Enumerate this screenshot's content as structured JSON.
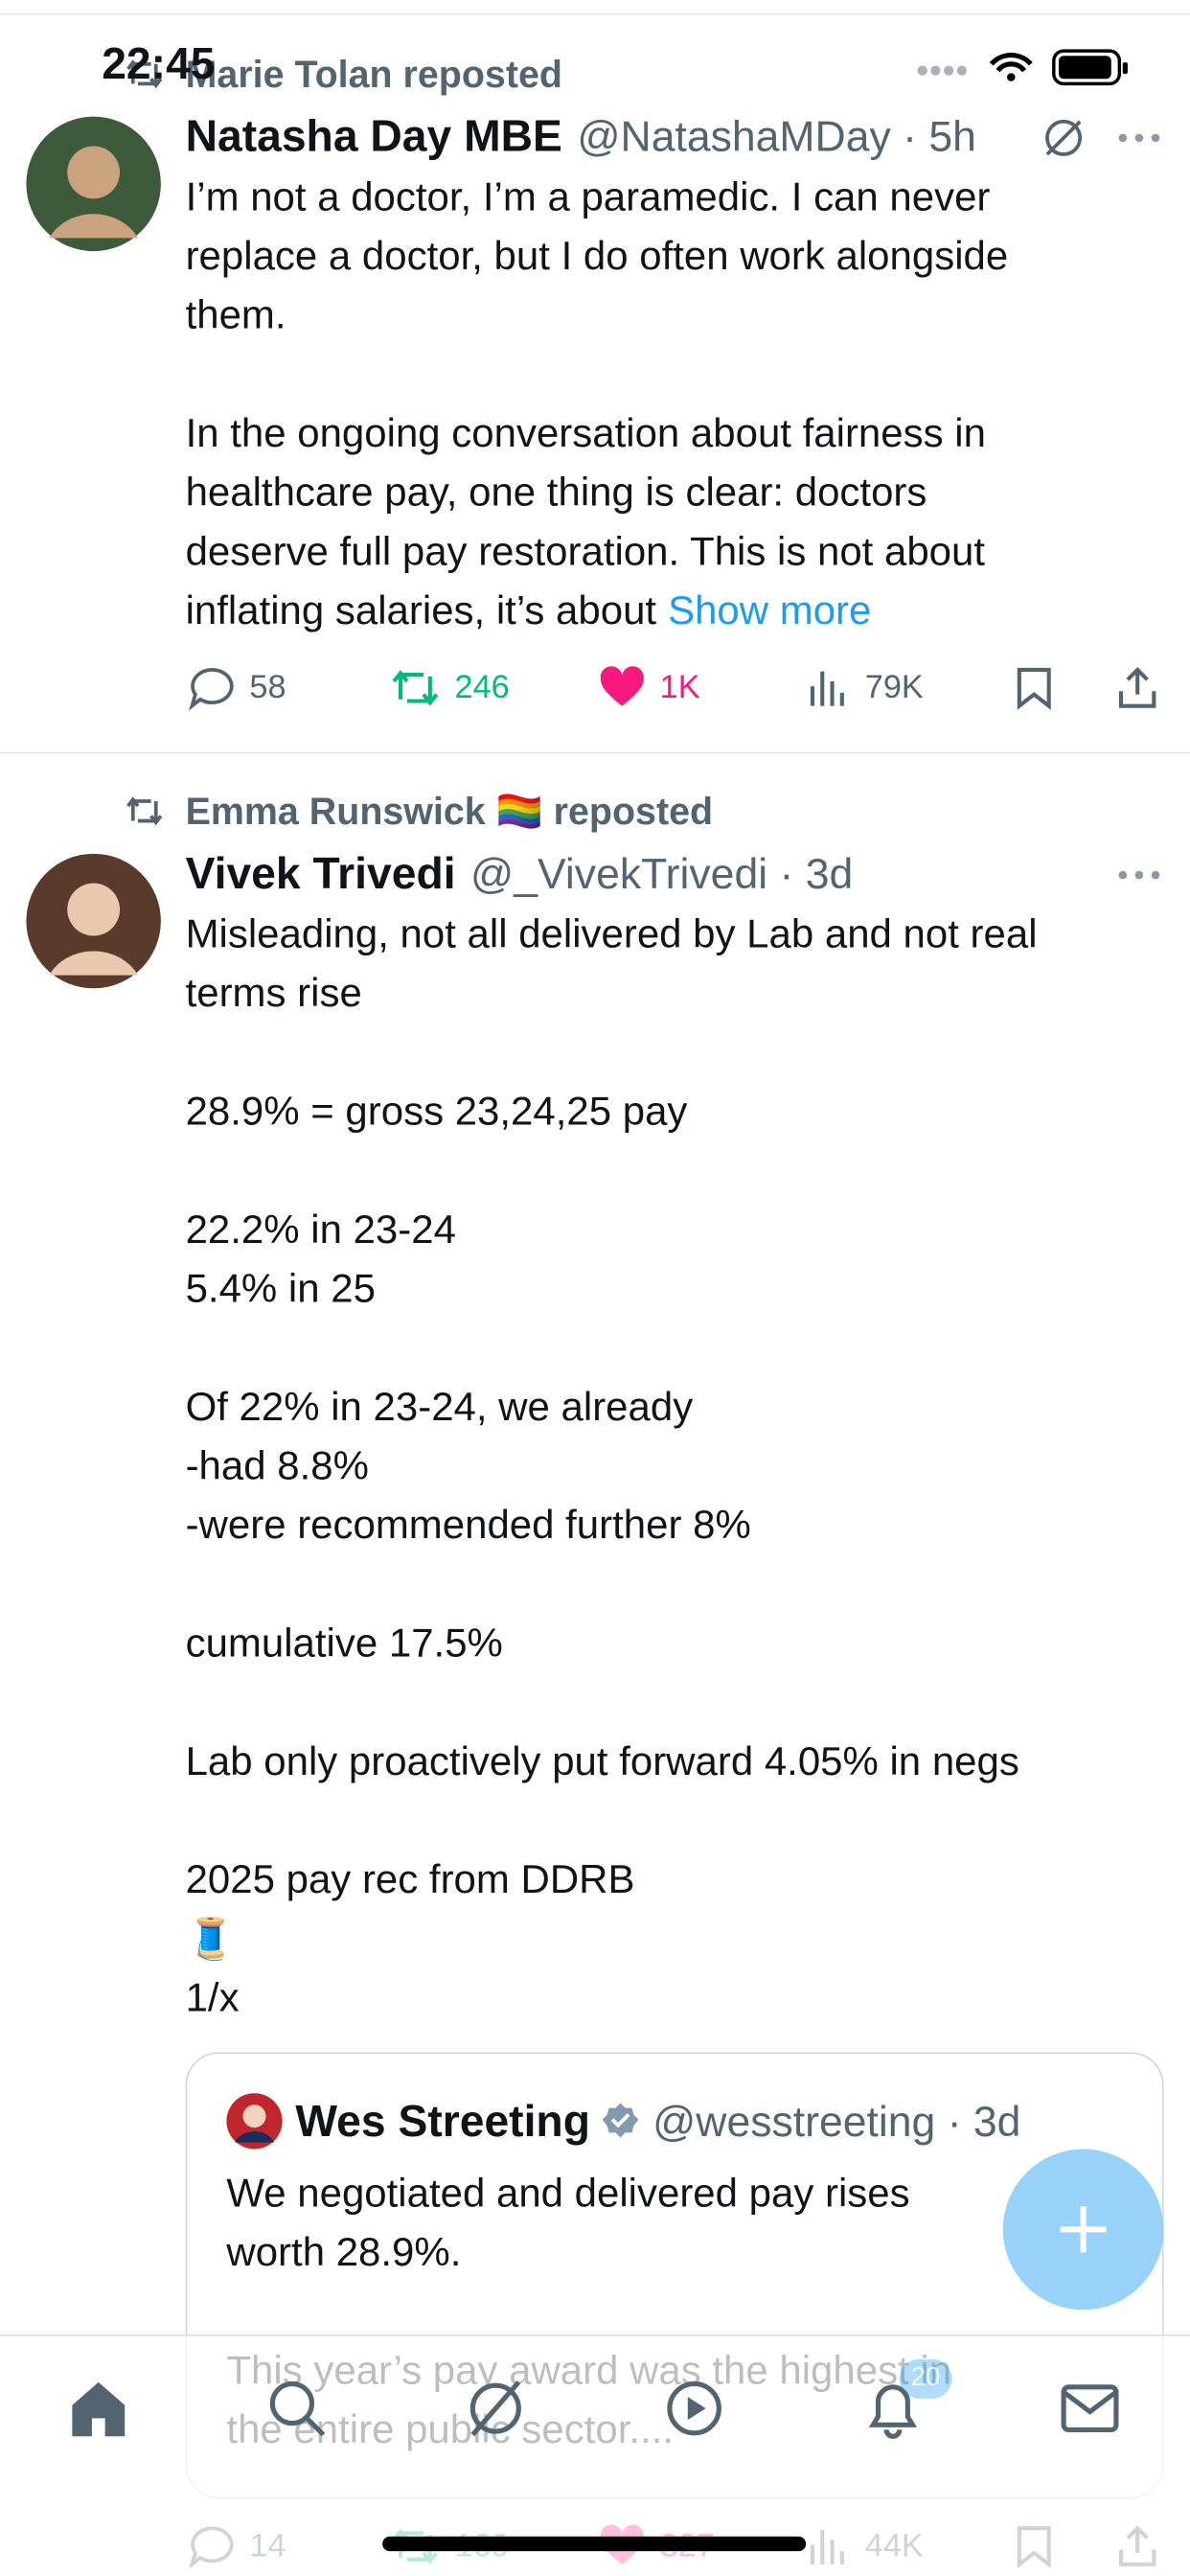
{
  "status": {
    "time": "22:45"
  },
  "posts": [
    {
      "reposted_by": "Marie Tolan reposted",
      "name": "Natasha Day MBE",
      "meta": "@NatashaMDay · 5h",
      "paragraphs": [
        [
          "I’m not a doctor, I’m a paramedic. I can never",
          "replace a doctor, but I do often work alongside",
          "them."
        ],
        [
          "In the ongoing conversation about fairness in",
          "healthcare pay, one thing is clear: doctors",
          "deserve full pay restoration. This is not about",
          "inflating salaries, it’s about"
        ]
      ],
      "show_more": "Show more",
      "stats": {
        "replies": "58",
        "reposts": "246",
        "likes": "1K",
        "views": "79K"
      }
    },
    {
      "reposted_by": "Emma Runswick 🏳️‍🌈 reposted",
      "name": "Vivek Trivedi",
      "meta": "@_VivekTrivedi · 3d",
      "paragraphs": [
        [
          "Misleading, not all delivered by Lab and not real",
          "terms rise"
        ],
        [
          "28.9% = gross 23,24,25 pay"
        ],
        [
          "22.2% in 23-24",
          "5.4% in 25"
        ],
        [
          "Of 22% in 23-24, we already",
          "-had 8.8%",
          "-were recommended further 8%"
        ],
        [
          "cumulative 17.5%"
        ],
        [
          "Lab only proactively put forward 4.05% in negs"
        ],
        [
          "2025 pay rec from DDRB",
          "🧵",
          "1/x"
        ]
      ],
      "quote": {
        "name": "Wes Streeting",
        "meta": "@wesstreeting · 3d",
        "paragraphs": [
          [
            "We negotiated and delivered pay rises",
            "worth 28.9%."
          ],
          [
            "This year’s pay award was the highest in",
            "the entire public sector...."
          ]
        ]
      },
      "stats": {
        "replies": "14",
        "reposts": "169",
        "likes": "327",
        "views": "44K"
      }
    }
  ],
  "nav": {
    "notification_badge": "20"
  }
}
